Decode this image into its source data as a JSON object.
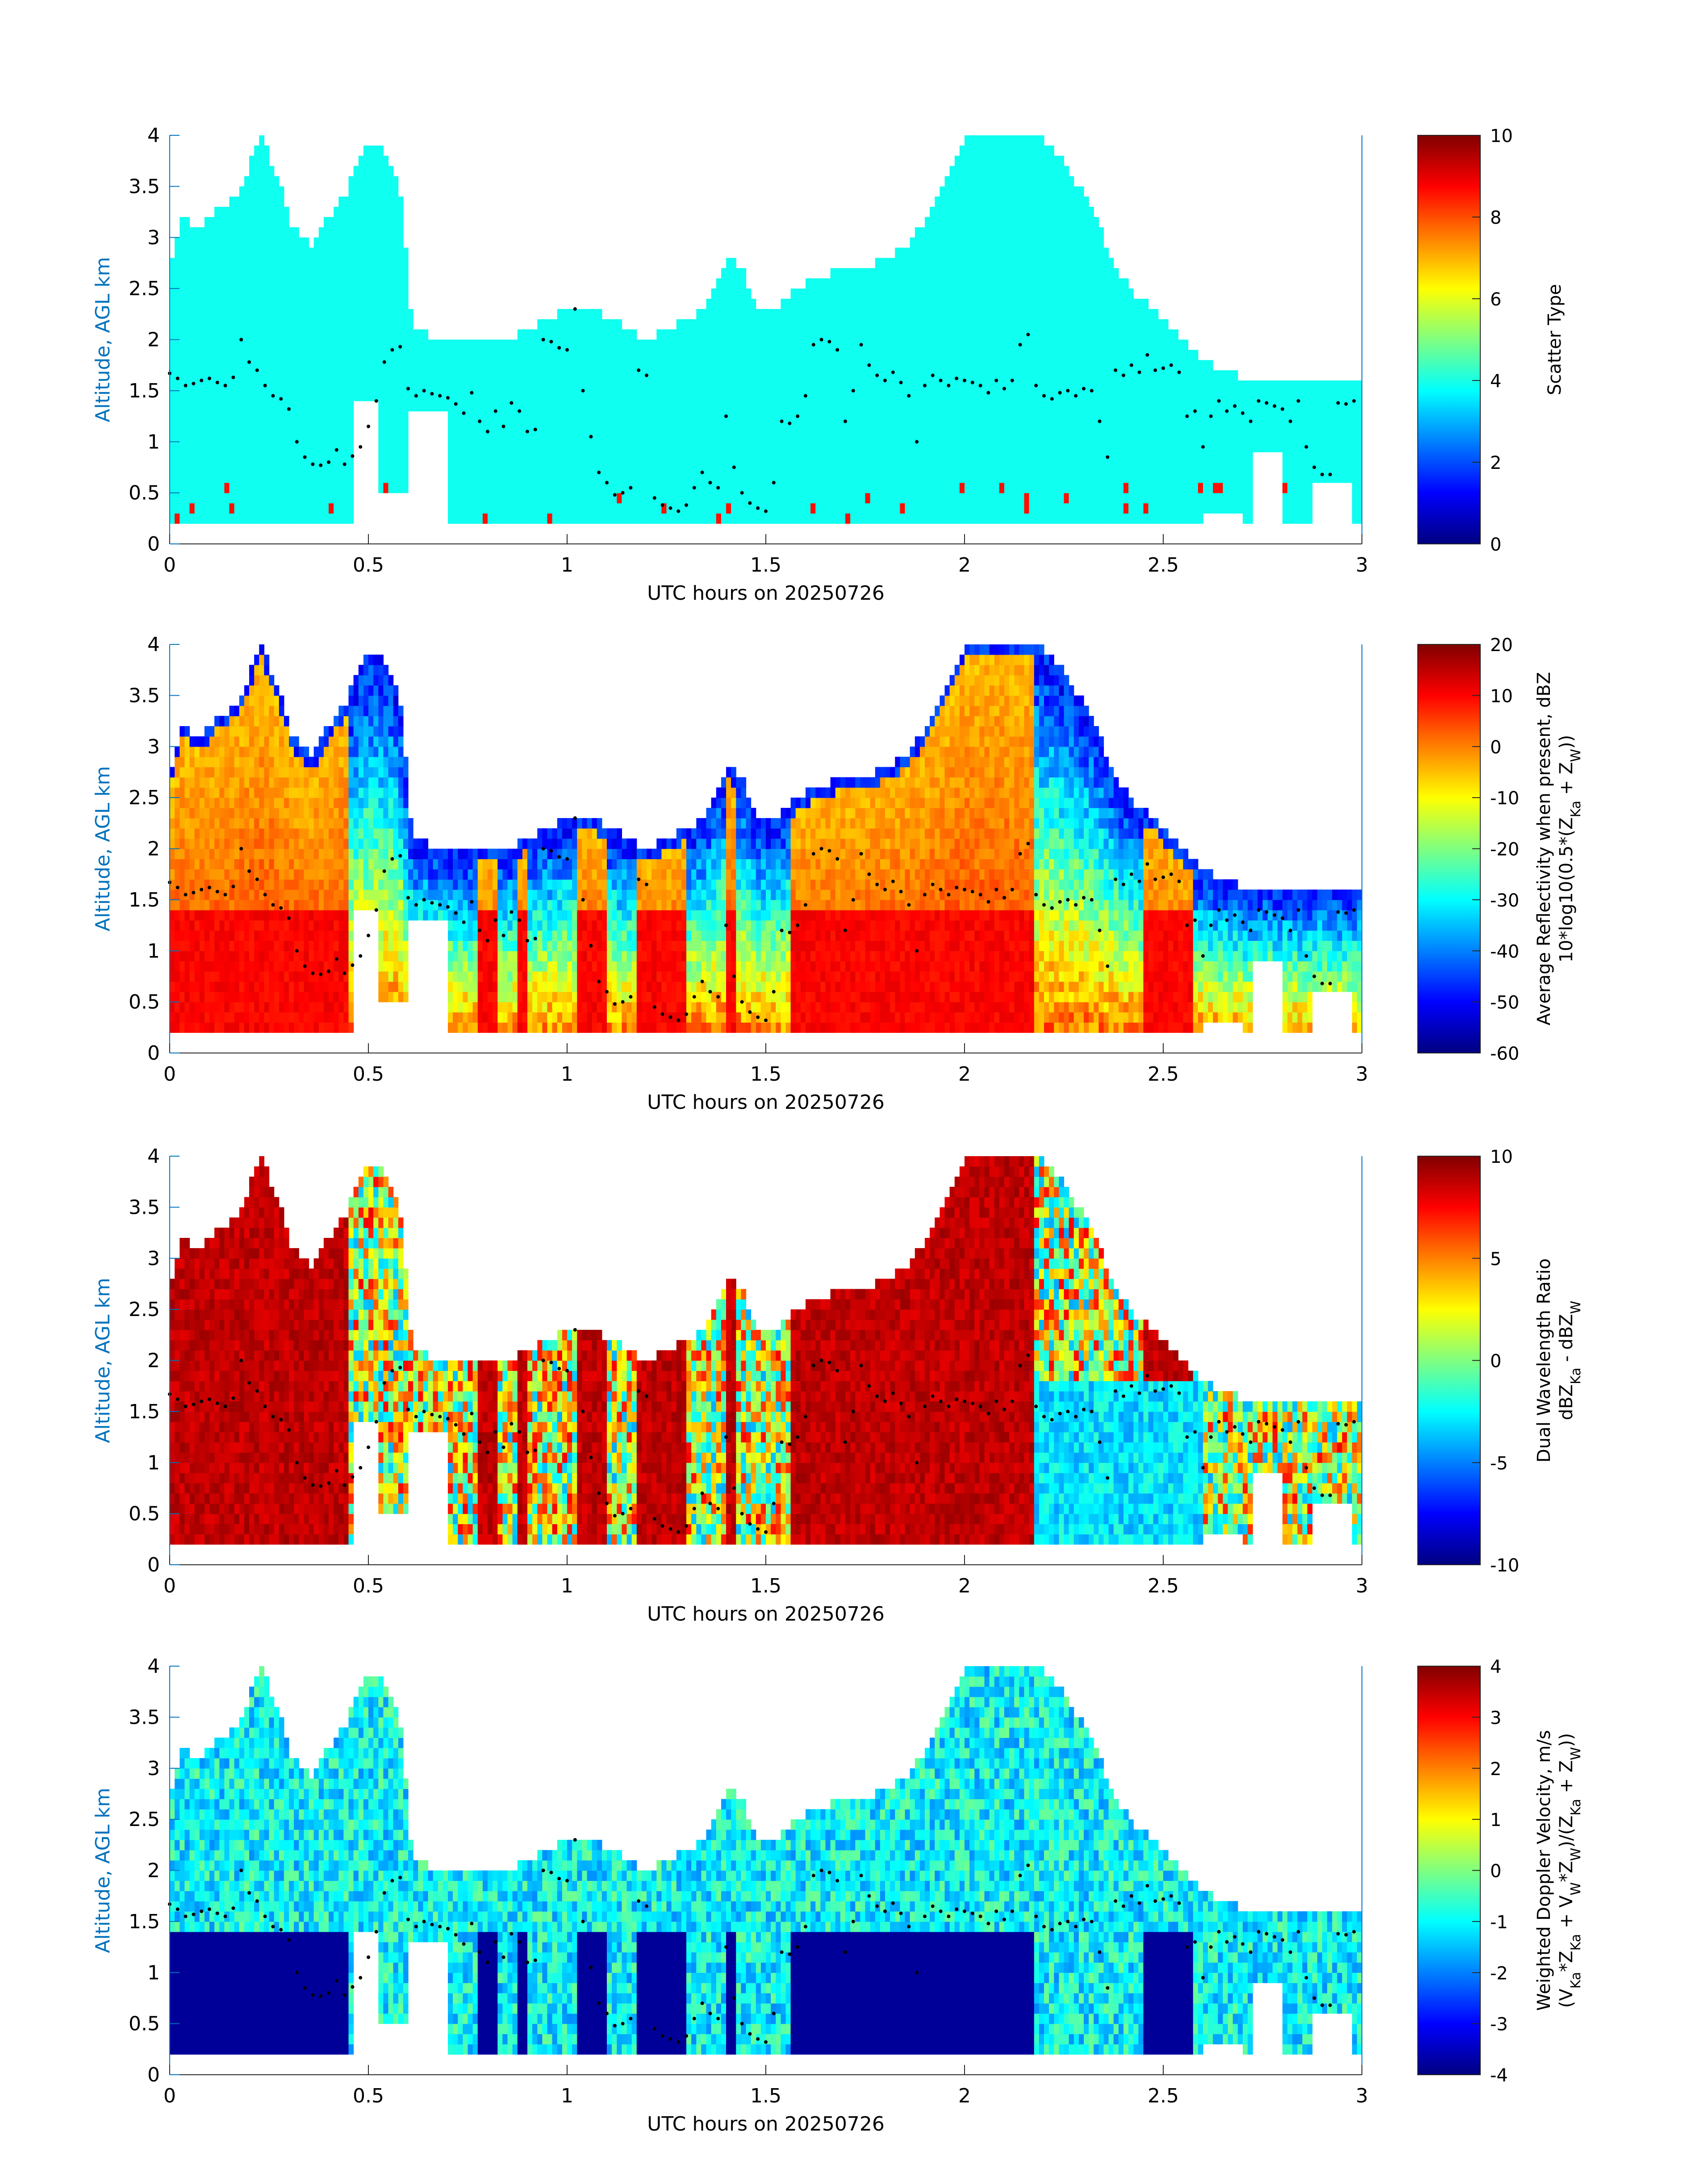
{
  "chart_data": [
    {
      "type": "heatmap",
      "title": "",
      "xlabel": "UTC hours on 20250726",
      "ylabel": "Altitude, AGL km",
      "xlim": [
        0,
        3
      ],
      "ylim": [
        0,
        4
      ],
      "xticks": [
        "0",
        "0.5",
        "1",
        "1.5",
        "2",
        "2.5",
        "3"
      ],
      "yticks": [
        "0",
        "0.5",
        "1",
        "1.5",
        "2",
        "2.5",
        "3",
        "3.5",
        "4"
      ],
      "colorbar": {
        "label": "Scatter Type",
        "label_lines": [
          "Scatter Type"
        ],
        "range": [
          0,
          10
        ],
        "ticks": [
          "0",
          "2",
          "4",
          "6",
          "8",
          "10"
        ],
        "colormap": "jet"
      },
      "field": {
        "dominant_value": 3.9,
        "dominant_color": "#20F0D8",
        "sparse_value": 8.6,
        "sparse_color": "#F04020"
      }
    },
    {
      "type": "heatmap",
      "title": "",
      "xlabel": "UTC hours on 20250726",
      "ylabel": "Altitude, AGL km",
      "xlim": [
        0,
        3
      ],
      "ylim": [
        0,
        4
      ],
      "xticks": [
        "0",
        "0.5",
        "1",
        "1.5",
        "2",
        "2.5",
        "3"
      ],
      "yticks": [
        "0",
        "0.5",
        "1",
        "1.5",
        "2",
        "2.5",
        "3",
        "3.5",
        "4"
      ],
      "colorbar": {
        "label": "Average Reflectivity when present, dBZ 10*log10(0.5*(Z_Ka + Z_W))",
        "label_lines": [
          "Average Reflectivity when present, dBZ",
          "10*log10(0.5*(Z",
          "Ka",
          " + Z",
          "W",
          "))"
        ],
        "range": [
          -60,
          20
        ],
        "ticks": [
          "-60",
          "-50",
          "-40",
          "-30",
          "-20",
          "-10",
          "0",
          "10",
          "20"
        ],
        "colormap": "jet"
      },
      "field": {
        "core_value": 12,
        "edge_value": -50
      }
    },
    {
      "type": "heatmap",
      "title": "",
      "xlabel": "UTC hours on 20250726",
      "ylabel": "Altitude, AGL km",
      "xlim": [
        0,
        3
      ],
      "ylim": [
        0,
        4
      ],
      "xticks": [
        "0",
        "0.5",
        "1",
        "1.5",
        "2",
        "2.5",
        "3"
      ],
      "yticks": [
        "0",
        "0.5",
        "1",
        "1.5",
        "2",
        "2.5",
        "3",
        "3.5",
        "4"
      ],
      "colorbar": {
        "label": "Dual Wavelength Ratio dBZ_Ka - dBZ_W",
        "label_lines": [
          "Dual Wavelength Ratio",
          "dBZ",
          "Ka",
          " - dBZ",
          "W"
        ],
        "range": [
          -10,
          10
        ],
        "ticks": [
          "-10",
          "-5",
          "0",
          "5",
          "10"
        ],
        "colormap": "jet"
      },
      "field": {
        "core_value": 9.5,
        "edge_value": -3
      }
    },
    {
      "type": "heatmap",
      "title": "",
      "xlabel": "UTC hours on 20250726",
      "ylabel": "Altitude, AGL km",
      "xlim": [
        0,
        3
      ],
      "ylim": [
        0,
        4
      ],
      "xticks": [
        "0",
        "0.5",
        "1",
        "1.5",
        "2",
        "2.5",
        "3"
      ],
      "yticks": [
        "0",
        "0.5",
        "1",
        "1.5",
        "2",
        "2.5",
        "3",
        "3.5",
        "4"
      ],
      "colorbar": {
        "label": "Weighted Doppler Velocity, m/s (V_Ka*Z_Ka + V_W*Z_W)/(Z_Ka + Z_W)",
        "label_lines": [
          "Weighted Doppler Velocity, m/s",
          "(V",
          "Ka",
          "*Z",
          "Ka",
          " + V",
          "W",
          "*Z",
          "W",
          ")/(Z",
          "Ka",
          " + Z",
          "W",
          "))"
        ],
        "range": [
          -4,
          4
        ],
        "ticks": [
          "-4",
          "-3",
          "-2",
          "-1",
          "0",
          "1",
          "2",
          "3",
          "4"
        ],
        "colormap": "jet"
      },
      "field": {
        "below_melting_value": -3.8,
        "above_melting_value": -1
      }
    }
  ],
  "echo": {
    "x_step": 0.0125,
    "cloud_top_km": [
      [
        0,
        2.7
      ],
      [
        0.03,
        3.2
      ],
      [
        0.08,
        3.1
      ],
      [
        0.12,
        3.3
      ],
      [
        0.17,
        3.4
      ],
      [
        0.21,
        3.8
      ],
      [
        0.23,
        4.0
      ],
      [
        0.27,
        3.6
      ],
      [
        0.31,
        3.1
      ],
      [
        0.36,
        2.9
      ],
      [
        0.4,
        3.2
      ],
      [
        0.44,
        3.4
      ],
      [
        0.48,
        3.8
      ],
      [
        0.51,
        3.95
      ],
      [
        0.55,
        3.8
      ],
      [
        0.58,
        3.5
      ],
      [
        0.61,
        2.1
      ],
      [
        0.65,
        2.05
      ],
      [
        0.7,
        2.0
      ],
      [
        0.75,
        1.95
      ],
      [
        0.8,
        2.05
      ],
      [
        0.86,
        2.0
      ],
      [
        0.9,
        2.1
      ],
      [
        0.95,
        2.2
      ],
      [
        1.0,
        2.3
      ],
      [
        1.04,
        2.3
      ],
      [
        1.09,
        2.25
      ],
      [
        1.14,
        2.15
      ],
      [
        1.2,
        2.0
      ],
      [
        1.25,
        2.1
      ],
      [
        1.3,
        2.2
      ],
      [
        1.35,
        2.3
      ],
      [
        1.4,
        2.8
      ],
      [
        1.44,
        2.7
      ],
      [
        1.48,
        2.25
      ],
      [
        1.53,
        2.3
      ],
      [
        1.58,
        2.5
      ],
      [
        1.63,
        2.6
      ],
      [
        1.7,
        2.7
      ],
      [
        1.78,
        2.75
      ],
      [
        1.85,
        2.9
      ],
      [
        1.91,
        3.2
      ],
      [
        1.96,
        3.6
      ],
      [
        2.0,
        4.0
      ],
      [
        2.05,
        4.0
      ],
      [
        2.1,
        4.0
      ],
      [
        2.17,
        4.0
      ],
      [
        2.22,
        3.9
      ],
      [
        2.27,
        3.6
      ],
      [
        2.32,
        3.3
      ],
      [
        2.36,
        2.9
      ],
      [
        2.4,
        2.6
      ],
      [
        2.44,
        2.4
      ],
      [
        2.48,
        2.3
      ],
      [
        2.52,
        2.1
      ],
      [
        2.56,
        1.95
      ],
      [
        2.6,
        1.8
      ],
      [
        2.64,
        1.7
      ],
      [
        2.69,
        1.65
      ],
      [
        2.76,
        1.65
      ],
      [
        2.82,
        1.6
      ],
      [
        2.88,
        1.6
      ],
      [
        2.94,
        1.6
      ],
      [
        3.0,
        1.6
      ]
    ],
    "cloud_base_km": 0.18,
    "gaps": [
      [
        0.46,
        0.53,
        1.4
      ],
      [
        0.53,
        0.6,
        0.5
      ],
      [
        0.6,
        0.7,
        1.3
      ],
      [
        2.6,
        2.7,
        0.3
      ],
      [
        2.73,
        2.8,
        0.9
      ],
      [
        2.88,
        2.98,
        0.6
      ]
    ],
    "melting_level_km": 1.45,
    "cores": [
      [
        0.0,
        0.45
      ],
      [
        0.78,
        0.82
      ],
      [
        0.88,
        0.9
      ],
      [
        1.03,
        1.1
      ],
      [
        1.17,
        1.3
      ],
      [
        1.4,
        1.43
      ],
      [
        1.56,
        2.17
      ],
      [
        2.45,
        2.57
      ]
    ]
  },
  "overlay_dots": {
    "name": "",
    "color": "#000000",
    "x": [
      0.0,
      0.02,
      0.04,
      0.06,
      0.08,
      0.1,
      0.12,
      0.14,
      0.16,
      0.18,
      0.2,
      0.22,
      0.24,
      0.26,
      0.28,
      0.3,
      0.32,
      0.34,
      0.36,
      0.38,
      0.4,
      0.42,
      0.44,
      0.46,
      0.48,
      0.5,
      0.52,
      0.54,
      0.56,
      0.58,
      0.6,
      0.62,
      0.64,
      0.66,
      0.68,
      0.7,
      0.72,
      0.74,
      0.76,
      0.78,
      0.8,
      0.82,
      0.84,
      0.86,
      0.88,
      0.9,
      0.92,
      0.94,
      0.96,
      0.98,
      1.0,
      1.02,
      1.04,
      1.06,
      1.08,
      1.1,
      1.12,
      1.14,
      1.16,
      1.18,
      1.2,
      1.22,
      1.24,
      1.26,
      1.28,
      1.3,
      1.32,
      1.34,
      1.36,
      1.38,
      1.4,
      1.42,
      1.44,
      1.46,
      1.48,
      1.5,
      1.52,
      1.54,
      1.56,
      1.58,
      1.6,
      1.62,
      1.64,
      1.66,
      1.68,
      1.7,
      1.72,
      1.74,
      1.76,
      1.78,
      1.8,
      1.82,
      1.84,
      1.86,
      1.88,
      1.9,
      1.92,
      1.94,
      1.96,
      1.98,
      2.0,
      2.02,
      2.04,
      2.06,
      2.08,
      2.1,
      2.12,
      2.14,
      2.16,
      2.18,
      2.2,
      2.22,
      2.24,
      2.26,
      2.28,
      2.3,
      2.32,
      2.34,
      2.36,
      2.38,
      2.4,
      2.42,
      2.44,
      2.46,
      2.48,
      2.5,
      2.52,
      2.54,
      2.56,
      2.58,
      2.6,
      2.62,
      2.64,
      2.66,
      2.68,
      2.7,
      2.72,
      2.74,
      2.76,
      2.78,
      2.8,
      2.82,
      2.84,
      2.86,
      2.88,
      2.9,
      2.92,
      2.94,
      2.96,
      2.98
    ],
    "y": [
      1.67,
      1.62,
      1.55,
      1.57,
      1.6,
      1.62,
      1.58,
      1.55,
      1.63,
      2.0,
      1.78,
      1.7,
      1.55,
      1.45,
      1.42,
      1.32,
      1.0,
      0.85,
      0.78,
      0.77,
      0.8,
      0.92,
      0.78,
      0.86,
      0.95,
      1.15,
      1.4,
      1.78,
      1.9,
      1.93,
      1.52,
      1.45,
      1.5,
      1.47,
      1.45,
      1.43,
      1.37,
      1.28,
      1.48,
      1.2,
      1.1,
      1.3,
      1.15,
      1.38,
      1.3,
      1.1,
      1.12,
      2.0,
      1.98,
      1.92,
      1.9,
      2.3,
      1.5,
      1.05,
      0.7,
      0.6,
      0.48,
      0.5,
      0.55,
      1.7,
      1.65,
      0.45,
      0.38,
      0.35,
      0.32,
      0.38,
      0.55,
      0.7,
      0.6,
      0.55,
      1.25,
      0.75,
      0.5,
      0.4,
      0.35,
      0.32,
      0.6,
      1.2,
      1.18,
      1.25,
      1.45,
      1.95,
      2.0,
      1.98,
      1.9,
      1.2,
      1.5,
      1.95,
      1.75,
      1.65,
      1.6,
      1.68,
      1.58,
      1.45,
      1.0,
      1.55,
      1.65,
      1.6,
      1.55,
      1.62,
      1.6,
      1.58,
      1.55,
      1.48,
      1.6,
      1.52,
      1.6,
      1.95,
      2.05,
      1.55,
      1.45,
      1.42,
      1.48,
      1.5,
      1.45,
      1.52,
      1.5,
      1.2,
      0.85,
      1.7,
      1.65,
      1.75,
      1.68,
      1.85,
      1.7,
      1.72,
      1.75,
      1.68,
      1.25,
      1.3,
      0.95,
      1.25,
      1.4,
      1.3,
      1.35,
      1.28,
      1.2,
      1.4,
      1.38,
      1.35,
      1.32,
      1.2,
      1.4,
      0.95,
      0.75,
      0.68,
      0.68,
      1.38,
      1.37,
      1.4
    ]
  }
}
